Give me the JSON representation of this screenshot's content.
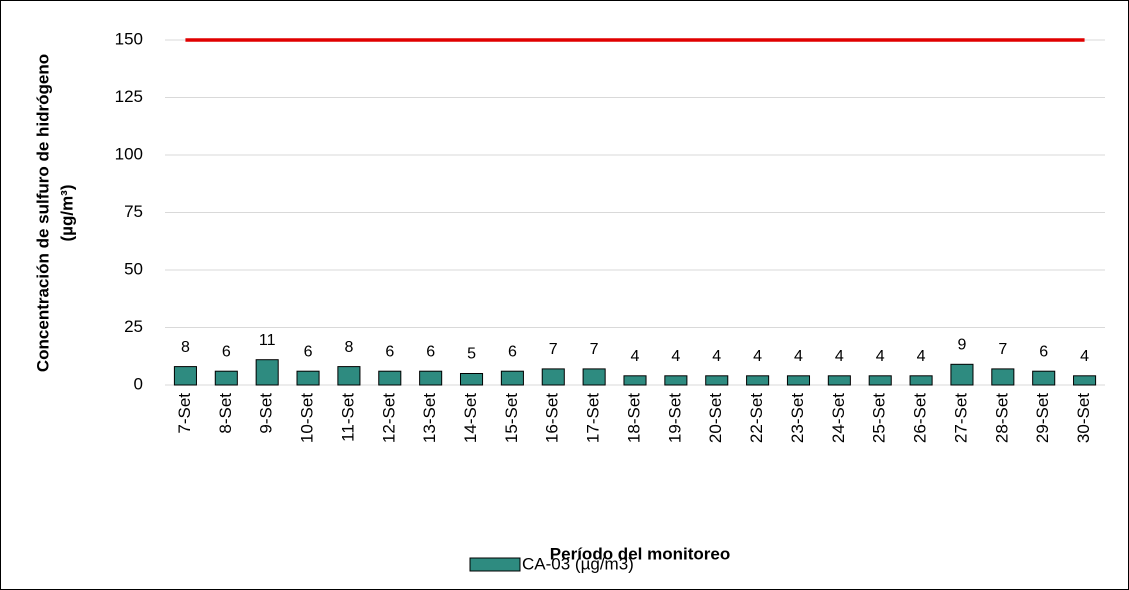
{
  "chart_data": {
    "type": "bar",
    "ylabel": [
      "Concentración de sulfuro de hidrógeno",
      "(µg/m³)"
    ],
    "xlabel": "Período del monitoreo",
    "categories": [
      "7-Set",
      "8-Set",
      "9-Set",
      "10-Set",
      "11-Set",
      "12-Set",
      "13-Set",
      "14-Set",
      "15-Set",
      "16-Set",
      "17-Set",
      "18-Set",
      "19-Set",
      "20-Set",
      "22-Set",
      "23-Set",
      "24-Set",
      "25-Set",
      "26-Set",
      "27-Set",
      "28-Set",
      "29-Set",
      "30-Set"
    ],
    "series": [
      {
        "name": "CA-03 (µg/m3)",
        "color": "#2e8b80",
        "values": [
          8,
          6,
          11,
          6,
          8,
          6,
          6,
          5,
          6,
          7,
          7,
          4,
          4,
          4,
          4,
          4,
          4,
          4,
          4,
          9,
          7,
          6,
          4
        ]
      }
    ],
    "reference_line": {
      "y": 150,
      "color": "#e00000"
    },
    "ylim": [
      0,
      150
    ],
    "yticks": [
      0,
      25,
      50,
      75,
      100,
      125,
      150
    ],
    "grid": true,
    "legend": "bottom"
  }
}
